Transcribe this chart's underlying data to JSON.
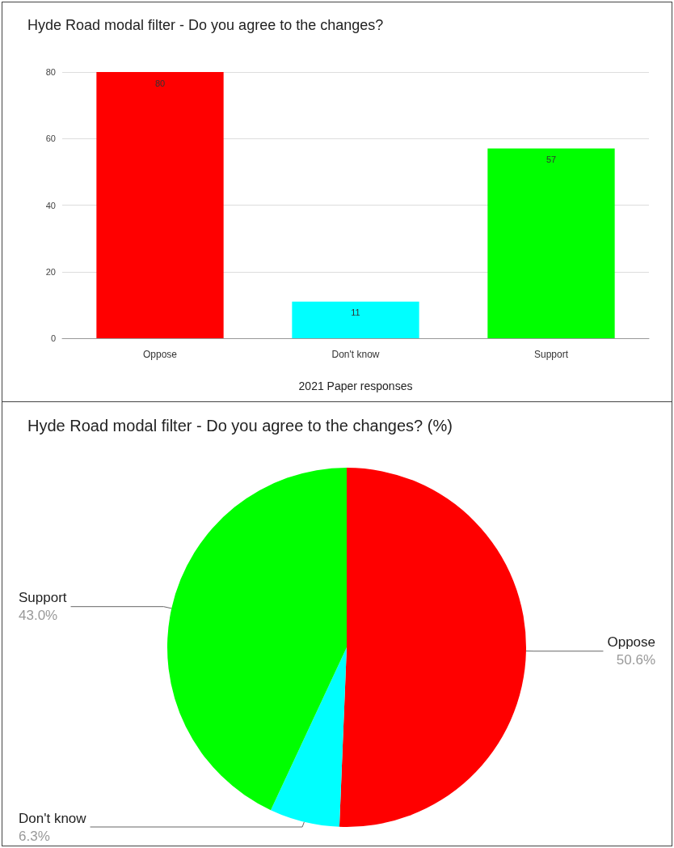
{
  "chart_data": [
    {
      "type": "bar",
      "title": "Hyde Road modal filter - Do you agree to the changes?",
      "xlabel": "2021 Paper responses",
      "categories": [
        "Oppose",
        "Don't know",
        "Support"
      ],
      "values": [
        80,
        11,
        57
      ],
      "colors": [
        "#ff0000",
        "#00ffff",
        "#00ff00"
      ],
      "ylim": [
        0,
        80
      ],
      "yticks": [
        0,
        20,
        40,
        60,
        80
      ],
      "grid": "y",
      "data_labels": true,
      "legend": false
    },
    {
      "type": "pie",
      "title": "Hyde Road modal filter - Do you agree to the changes? (%)",
      "categories": [
        "Oppose",
        "Don't know",
        "Support"
      ],
      "values": [
        50.6,
        6.3,
        43.0
      ],
      "value_labels": [
        "50.6%",
        "6.3%",
        "43.0%"
      ],
      "colors": [
        "#ff0000",
        "#00ffff",
        "#00ff00"
      ],
      "legend": false
    }
  ]
}
